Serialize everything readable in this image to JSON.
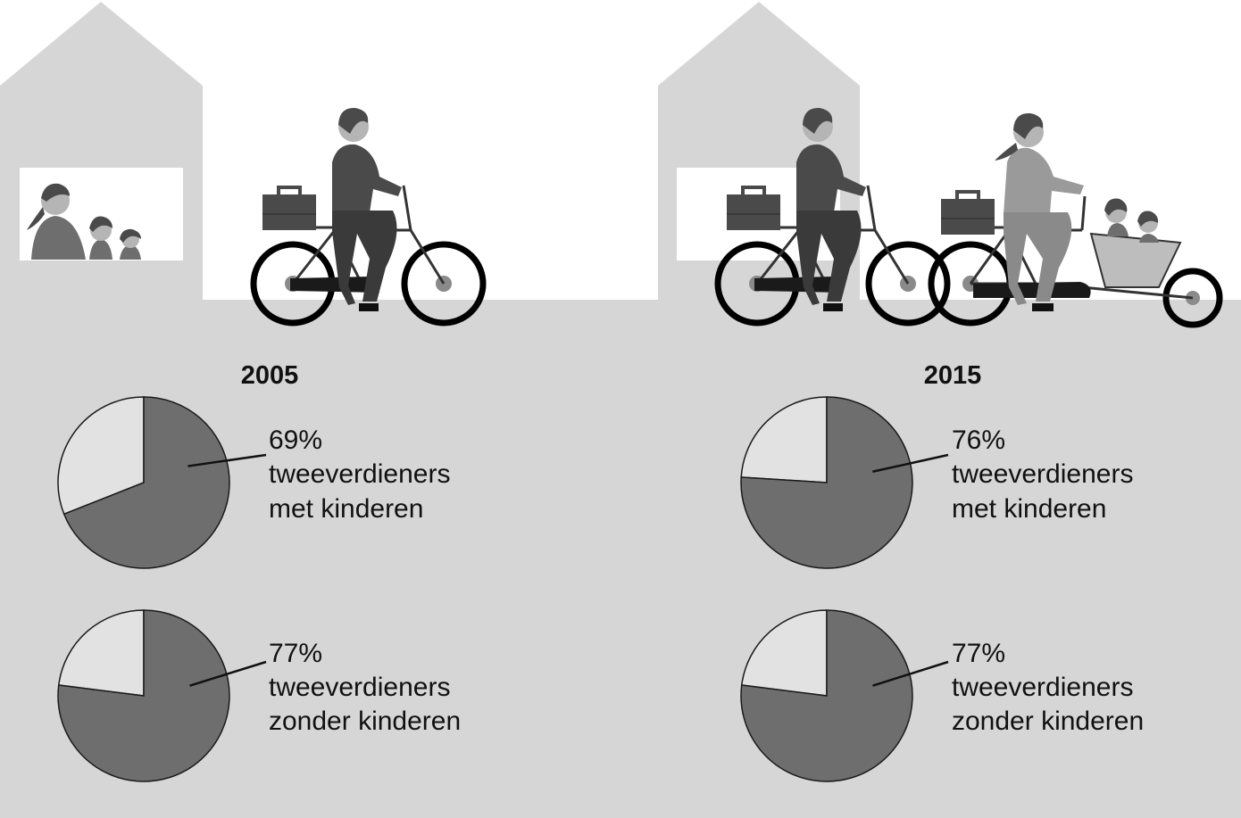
{
  "colors": {
    "ground": "#d6d6d6",
    "house": "#d6d6d6",
    "window": "#ffffff",
    "pie_main": "#6e6e6e",
    "pie_rest": "#e2e2e2",
    "pie_stroke": "#1a1a1a",
    "figure_dark": "#4a4a4a",
    "figure_mid": "#6a6a6a",
    "figure_light": "#9a9a9a",
    "skin": "#b8b8b8"
  },
  "chart_data": [
    {
      "type": "pie",
      "year": "2005",
      "share_percent": 69,
      "label_value": "69%",
      "label_line1": "tweeverdieners",
      "label_line2": "met kinderen"
    },
    {
      "type": "pie",
      "year": "2005",
      "share_percent": 77,
      "label_value": "77%",
      "label_line1": "tweeverdieners",
      "label_line2": "zonder kinderen"
    },
    {
      "type": "pie",
      "year": "2015",
      "share_percent": 76,
      "label_value": "76%",
      "label_line1": "tweeverdieners",
      "label_line2": "met kinderen"
    },
    {
      "type": "pie",
      "year": "2015",
      "share_percent": 77,
      "label_value": "77%",
      "label_line1": "tweeverdieners",
      "label_line2": "zonder kinderen"
    }
  ],
  "columns": [
    {
      "year": "2005"
    },
    {
      "year": "2015"
    }
  ]
}
